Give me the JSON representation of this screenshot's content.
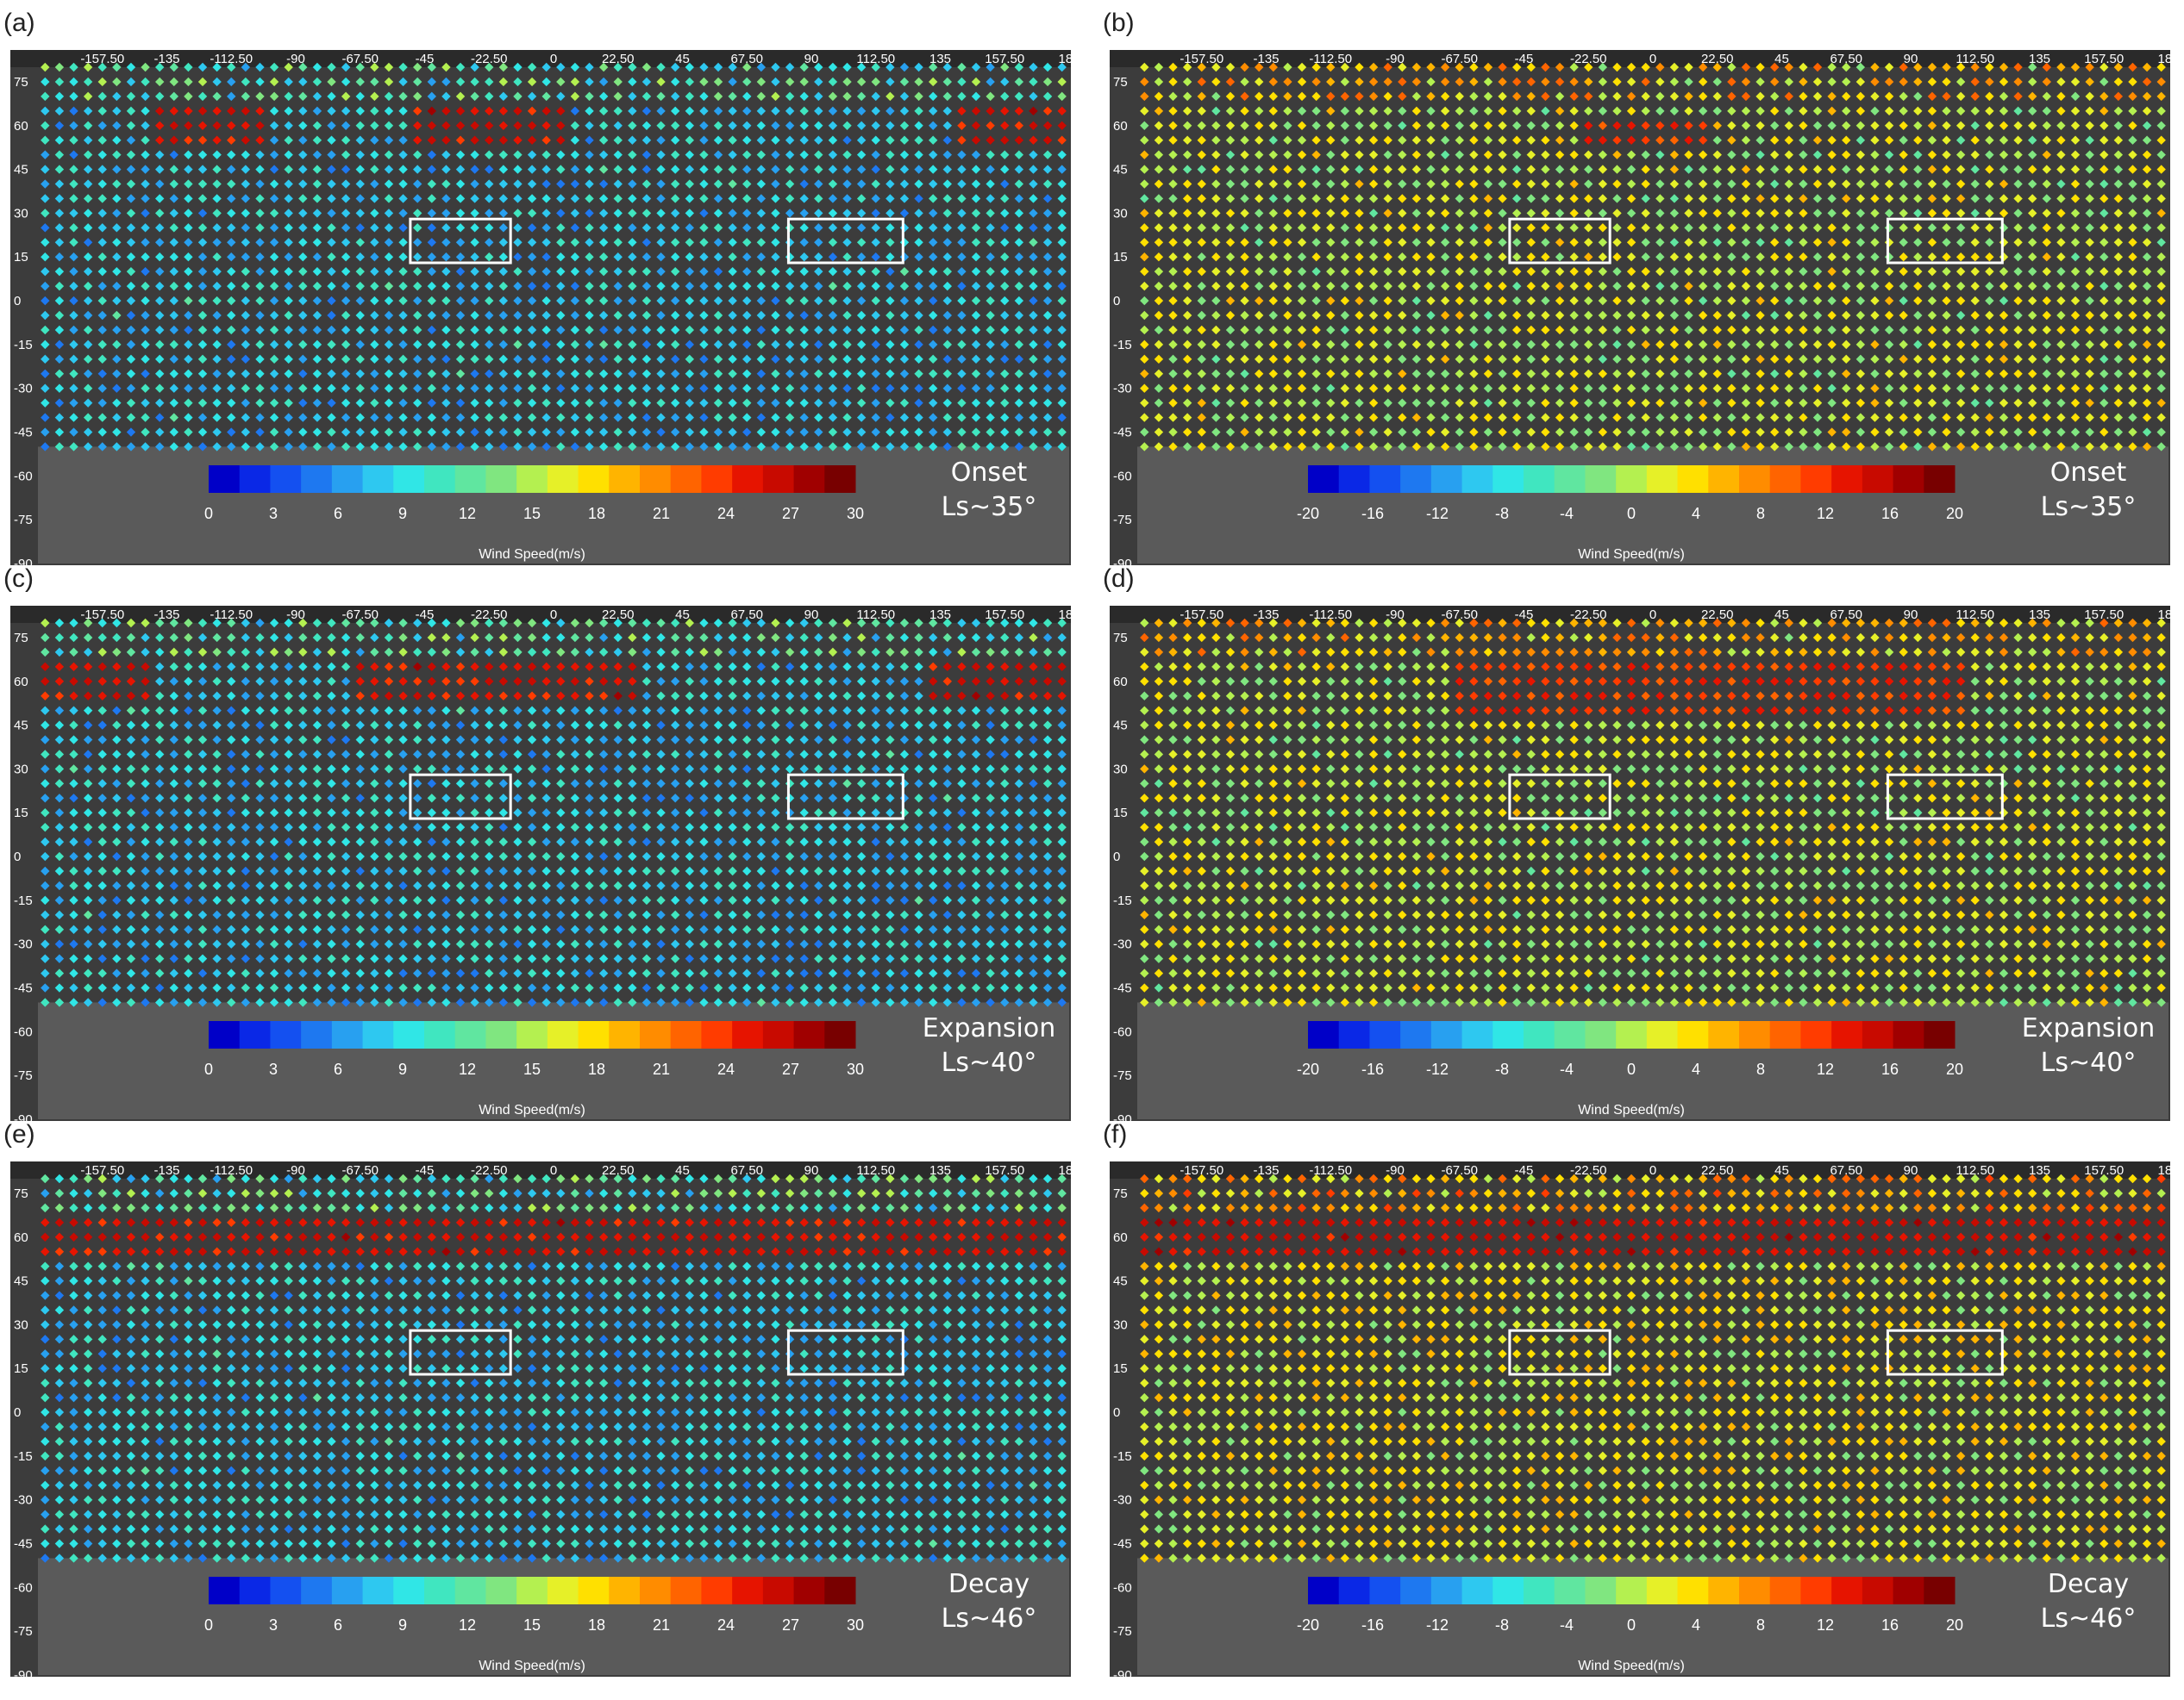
{
  "figure": {
    "panels": [
      {
        "letter": "(a)",
        "phase": "Onset",
        "ls": "Ls~35°",
        "kind": "speed"
      },
      {
        "letter": "(b)",
        "phase": "Onset",
        "ls": "Ls~35°",
        "kind": "anomaly"
      },
      {
        "letter": "(c)",
        "phase": "Expansion",
        "ls": "Ls~40°",
        "kind": "speed"
      },
      {
        "letter": "(d)",
        "phase": "Expansion",
        "ls": "Ls~40°",
        "kind": "anomaly"
      },
      {
        "letter": "(e)",
        "phase": "Decay",
        "ls": "Ls~46°",
        "kind": "speed"
      },
      {
        "letter": "(f)",
        "phase": "Decay",
        "ls": "Ls~46°",
        "kind": "anomaly"
      }
    ],
    "lon_ticks": [
      "-157.50",
      "-135",
      "-112.50",
      "-90",
      "-67.50",
      "-45",
      "-22.50",
      "0",
      "22.50",
      "45",
      "67.50",
      "90",
      "112.50",
      "135",
      "157.50",
      "180"
    ],
    "lat_ticks": [
      "75",
      "60",
      "45",
      "30",
      "15",
      "0",
      "-15",
      "-30",
      "-45",
      "-60",
      "-75",
      "-90"
    ],
    "colorbar_label": "Wind Speed(m/s)",
    "speed_ticks": [
      "0",
      "3",
      "6",
      "9",
      "12",
      "15",
      "18",
      "21",
      "24",
      "27",
      "30"
    ],
    "anomaly_ticks": [
      "-20",
      "-16",
      "-12",
      "-8",
      "-4",
      "0",
      "4",
      "8",
      "12",
      "16",
      "20"
    ],
    "colormap": [
      "#0000c8",
      "#0a28e6",
      "#1450f0",
      "#1e78f0",
      "#28a0f0",
      "#2ec8f0",
      "#30e6e6",
      "#40e6c0",
      "#60e6a0",
      "#80e680",
      "#b4f050",
      "#e6f028",
      "#ffe000",
      "#ffb400",
      "#ff8c00",
      "#ff6400",
      "#ff3c00",
      "#e61400",
      "#c80a00",
      "#a00000",
      "#780000"
    ]
  },
  "chart_data": [
    {
      "type": "heatmap",
      "panel": "a",
      "title": "",
      "colorbar_label": "Wind Speed(m/s)",
      "colorbar_range": [
        0,
        30
      ],
      "annotation": [
        "Onset",
        "Ls~35°"
      ],
      "x_ticks": [
        -157.5,
        -135,
        -112.5,
        -90,
        -67.5,
        -45,
        -22.5,
        0,
        22.5,
        45,
        67.5,
        90,
        112.5,
        135,
        157.5,
        180
      ],
      "y_ticks": [
        75,
        60,
        45,
        30,
        15,
        0,
        -15,
        -30,
        -45,
        -60,
        -75,
        -90
      ],
      "data_lat_range": [
        -50,
        80
      ],
      "high_band": {
        "lat": [
          55,
          65
        ],
        "lon_segments": [
          [
            -140,
            -100
          ],
          [
            -50,
            5
          ],
          [
            140,
            180
          ]
        ],
        "value": 26
      },
      "background_value": 8,
      "boxes": [
        {
          "lon": [
            -50,
            -15
          ],
          "lat": [
            13,
            28
          ]
        },
        {
          "lon": [
            82,
            122
          ],
          "lat": [
            13,
            28
          ]
        }
      ]
    },
    {
      "type": "heatmap",
      "panel": "b",
      "title": "",
      "colorbar_label": "Wind Speed(m/s)",
      "colorbar_range": [
        -20,
        20
      ],
      "annotation": [
        "Onset",
        "Ls~35°"
      ],
      "x_ticks": [
        -157.5,
        -135,
        -112.5,
        -90,
        -67.5,
        -45,
        -22.5,
        0,
        22.5,
        45,
        67.5,
        90,
        112.5,
        135,
        157.5,
        180
      ],
      "y_ticks": [
        75,
        60,
        45,
        30,
        15,
        0,
        -15,
        -30,
        -45,
        -60,
        -75,
        -90
      ],
      "data_lat_range": [
        -50,
        80
      ],
      "high_band": {
        "lat": [
          55,
          62
        ],
        "lon_segments": [
          [
            -25,
            20
          ]
        ],
        "value": 12
      },
      "background_value": 1,
      "boxes": [
        {
          "lon": [
            -50,
            -15
          ],
          "lat": [
            13,
            28
          ]
        },
        {
          "lon": [
            82,
            122
          ],
          "lat": [
            13,
            28
          ]
        }
      ]
    },
    {
      "type": "heatmap",
      "panel": "c",
      "title": "",
      "colorbar_label": "Wind Speed(m/s)",
      "colorbar_range": [
        0,
        30
      ],
      "annotation": [
        "Expansion",
        "Ls~40°"
      ],
      "x_ticks": [
        -157.5,
        -135,
        -112.5,
        -90,
        -67.5,
        -45,
        -22.5,
        0,
        22.5,
        45,
        67.5,
        90,
        112.5,
        135,
        157.5,
        180
      ],
      "y_ticks": [
        75,
        60,
        45,
        30,
        15,
        0,
        -15,
        -30,
        -45,
        -60,
        -75,
        -90
      ],
      "data_lat_range": [
        -50,
        80
      ],
      "high_band": {
        "lat": [
          55,
          66
        ],
        "lon_segments": [
          [
            -180,
            -140
          ],
          [
            -70,
            30
          ],
          [
            130,
            180
          ]
        ],
        "value": 26
      },
      "background_value": 8,
      "boxes": [
        {
          "lon": [
            -50,
            -15
          ],
          "lat": [
            13,
            28
          ]
        },
        {
          "lon": [
            82,
            122
          ],
          "lat": [
            13,
            28
          ]
        }
      ]
    },
    {
      "type": "heatmap",
      "panel": "d",
      "title": "",
      "colorbar_label": "Wind Speed(m/s)",
      "colorbar_range": [
        -20,
        20
      ],
      "annotation": [
        "Expansion",
        "Ls~40°"
      ],
      "x_ticks": [
        -157.5,
        -135,
        -112.5,
        -90,
        -67.5,
        -45,
        -22.5,
        0,
        22.5,
        45,
        67.5,
        90,
        112.5,
        135,
        157.5,
        180
      ],
      "y_ticks": [
        75,
        60,
        45,
        30,
        15,
        0,
        -15,
        -30,
        -45,
        -60,
        -75,
        -90
      ],
      "data_lat_range": [
        -50,
        80
      ],
      "high_band": {
        "lat": [
          50,
          65
        ],
        "lon_segments": [
          [
            -70,
            110
          ]
        ],
        "value": 12
      },
      "background_value": 1,
      "boxes": [
        {
          "lon": [
            -50,
            -15
          ],
          "lat": [
            13,
            28
          ]
        },
        {
          "lon": [
            82,
            122
          ],
          "lat": [
            13,
            28
          ]
        }
      ]
    },
    {
      "type": "heatmap",
      "panel": "e",
      "title": "",
      "colorbar_label": "Wind Speed(m/s)",
      "colorbar_range": [
        0,
        30
      ],
      "annotation": [
        "Decay",
        "Ls~46°"
      ],
      "x_ticks": [
        -157.5,
        -135,
        -112.5,
        -90,
        -67.5,
        -45,
        -22.5,
        0,
        22.5,
        45,
        67.5,
        90,
        112.5,
        135,
        157.5,
        180
      ],
      "y_ticks": [
        75,
        60,
        45,
        30,
        15,
        0,
        -15,
        -30,
        -45,
        -60,
        -75,
        -90
      ],
      "data_lat_range": [
        -50,
        80
      ],
      "high_band": {
        "lat": [
          55,
          68
        ],
        "lon_segments": [
          [
            -180,
            180
          ]
        ],
        "value": 26
      },
      "background_value": 8,
      "boxes": [
        {
          "lon": [
            -50,
            -15
          ],
          "lat": [
            13,
            28
          ]
        },
        {
          "lon": [
            82,
            122
          ],
          "lat": [
            13,
            28
          ]
        }
      ]
    },
    {
      "type": "heatmap",
      "panel": "f",
      "title": "",
      "colorbar_label": "Wind Speed(m/s)",
      "colorbar_range": [
        -20,
        20
      ],
      "annotation": [
        "Decay",
        "Ls~46°"
      ],
      "x_ticks": [
        -157.5,
        -135,
        -112.5,
        -90,
        -67.5,
        -45,
        -22.5,
        0,
        22.5,
        45,
        67.5,
        90,
        112.5,
        135,
        157.5,
        180
      ],
      "y_ticks": [
        75,
        60,
        45,
        30,
        15,
        0,
        -15,
        -30,
        -45,
        -60,
        -75,
        -90
      ],
      "data_lat_range": [
        -50,
        80
      ],
      "high_band": {
        "lat": [
          52,
          68
        ],
        "lon_segments": [
          [
            -180,
            180
          ]
        ],
        "value": 15
      },
      "background_value": 2,
      "boxes": [
        {
          "lon": [
            -50,
            -15
          ],
          "lat": [
            13,
            28
          ]
        },
        {
          "lon": [
            82,
            122
          ],
          "lat": [
            13,
            28
          ]
        }
      ]
    }
  ]
}
